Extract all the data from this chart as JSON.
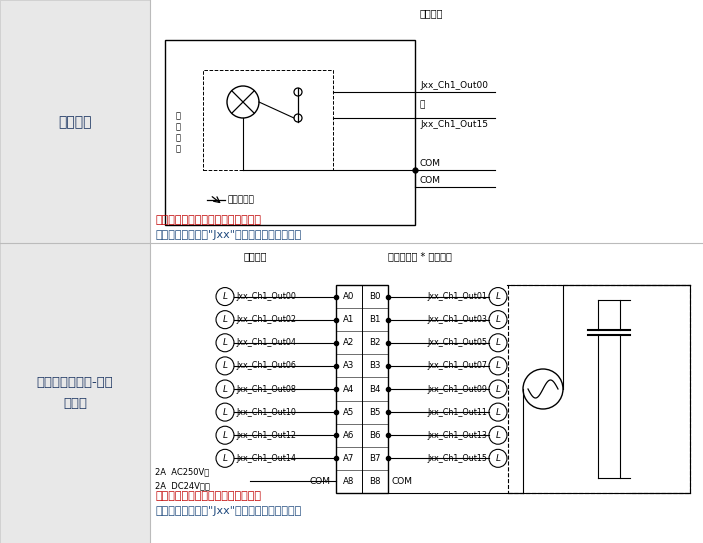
{
  "bg_color": "#f0f0f0",
  "white": "#ffffff",
  "black": "#000000",
  "gray_border": "#aaaaaa",
  "red_text": "#c00000",
  "blue_text": "#1f497d",
  "section1_label": "回路配置",
  "section2_label": "外部连接和端子-设备\n变量图",
  "signal_name": "信号名称",
  "connector_pin": "连接器针脚",
  "signal_name2": "信号名称",
  "note_line1": "端子的信号名称是设备的变量名称。",
  "note_line2": "设备变量名称是将\"Jxx\"用作设备名称的名称。",
  "internal_circuit": "内\n部\n回\n路",
  "output_indicator": "输出指示灯",
  "signal_label": "信号名称",
  "ch1_out00": "Jxx_Ch1_Out00",
  "at": "至",
  "ch1_out15": "Jxx_Ch1_Out15",
  "com": "COM",
  "left_signals": [
    "Jxx_Ch1_Out00",
    "Jxx_Ch1_Out02",
    "Jxx_Ch1_Out04",
    "Jxx_Ch1_Out06",
    "Jxx_Ch1_Out08",
    "Jxx_Ch1_Out10",
    "Jxx_Ch1_Out12",
    "Jxx_Ch1_Out14"
  ],
  "right_signals": [
    "Jxx_Ch1_Out01",
    "Jxx_Ch1_Out03",
    "Jxx_Ch1_Out05",
    "Jxx_Ch1_Out07",
    "Jxx_Ch1_Out09",
    "Jxx_Ch1_Out11",
    "Jxx_Ch1_Out13",
    "Jxx_Ch1_Out15"
  ],
  "left_pins": [
    "A0",
    "A1",
    "A2",
    "A3",
    "A4",
    "A5",
    "A6",
    "A7"
  ],
  "right_pins": [
    "B0",
    "B1",
    "B2",
    "B3",
    "B4",
    "B5",
    "B6",
    "B7"
  ],
  "com_label": "COM",
  "a8_label": "A8",
  "b8_label": "B8",
  "spec_line1": "2A  AC250V、",
  "spec_line2": "2A  DC24V以下"
}
